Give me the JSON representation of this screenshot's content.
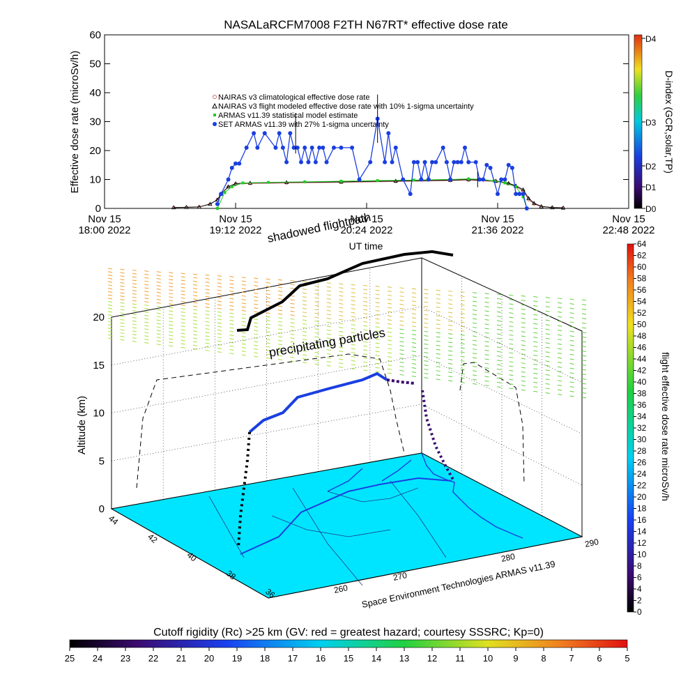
{
  "title": "NASALaRCFM7008  F2TH N67RT* effective dose rate",
  "top_chart": {
    "ylabel": "Effective dose rate (microSv/h)",
    "xlabel": "UT time",
    "yticks": [
      "0",
      "10",
      "20",
      "30",
      "40",
      "50",
      "60"
    ],
    "xticks": [
      {
        "day": "Nov 15",
        "time": "18:00 2022"
      },
      {
        "day": "Nov 15",
        "time": "19:12 2022"
      },
      {
        "day": "Nov 15",
        "time": "20:24 2022"
      },
      {
        "day": "Nov 15",
        "time": "21:36 2022"
      },
      {
        "day": "Nov 15",
        "time": "22:48 2022"
      }
    ],
    "legend": [
      "NAIRAS v3 climatological effective dose rate",
      "NAIRAS v3 flight modeled effective dose rate with 10% 1-sigma uncertainty",
      "ARMAS v11.39 statistical model estimate",
      "SET ARMAS v11.39 with 27% 1-sigma uncertainty"
    ],
    "dindex": {
      "label": "D-index (GCR,solar,TP)",
      "ticks": [
        "D0",
        "D1",
        "D2",
        "D3",
        "D4"
      ]
    }
  },
  "chart_data": [
    {
      "type": "line",
      "title": "NASALaRCFM7008  F2TH N67RT* effective dose rate",
      "xlabel": "UT time",
      "ylabel": "Effective dose rate (microSv/h)",
      "x_units": "minutes after 18:00 UT, Nov 15 2022",
      "xlim": [
        0,
        288
      ],
      "ylim": [
        0,
        60
      ],
      "grid": false,
      "legend_position": "top-left",
      "series": [
        {
          "name": "NAIRAS v3 climatological effective dose rate",
          "color": "#c87070",
          "x": [
            38,
            45,
            52,
            58,
            62,
            64,
            68,
            72,
            80,
            100,
            130,
            160,
            190,
            200,
            215,
            222,
            226,
            230,
            233,
            236,
            240,
            246,
            252
          ],
          "y": [
            0.3,
            0.4,
            0.5,
            1.5,
            3,
            5,
            7.5,
            8.5,
            8.6,
            8.8,
            9,
            9.3,
            9.6,
            9.8,
            9.3,
            8.5,
            7.5,
            6,
            3,
            1.5,
            0.6,
            0.3,
            0.2
          ]
        },
        {
          "name": "NAIRAS v3 flight modeled effective dose rate with 10% 1-sigma uncertainty",
          "color": "#000000",
          "x": [
            38,
            45,
            52,
            58,
            62,
            64,
            68,
            72,
            80,
            100,
            130,
            160,
            190,
            200,
            215,
            222,
            226,
            230,
            233,
            236,
            240,
            246,
            252
          ],
          "y": [
            0.3,
            0.4,
            0.5,
            1.5,
            3,
            5,
            7.5,
            8.6,
            8.8,
            9,
            9.2,
            9.5,
            9.8,
            10,
            9.5,
            8.7,
            7.8,
            6.5,
            3.5,
            1.8,
            0.7,
            0.3,
            0.2
          ]
        },
        {
          "name": "ARMAS v11.39 statistical model estimate",
          "color": "#22cc22",
          "x": [
            62,
            66,
            70,
            76,
            90,
            110,
            130,
            150,
            170,
            190,
            200,
            208,
            214,
            220,
            226,
            230,
            232
          ],
          "y": [
            0,
            5.5,
            7.5,
            8.8,
            9,
            9.2,
            9.4,
            9.6,
            9.8,
            10,
            10.2,
            10,
            9.5,
            8.8,
            7.5,
            4,
            0
          ]
        },
        {
          "name": "SET ARMAS v11.39 with 27% 1-sigma uncertainty",
          "color": "#1a3fe0",
          "x": [
            62,
            64,
            68,
            70,
            72,
            74,
            78,
            82,
            84,
            88,
            94,
            96,
            98,
            100,
            102,
            104,
            106,
            108,
            110,
            112,
            114,
            116,
            118,
            120,
            122,
            126,
            130,
            136,
            140,
            146,
            150,
            154,
            156,
            158,
            160,
            164,
            168,
            170,
            172,
            174,
            176,
            178,
            180,
            182,
            186,
            188,
            190,
            192,
            194,
            196,
            198,
            200,
            204,
            206,
            208,
            210,
            212,
            216,
            218,
            220,
            222,
            224,
            226,
            228,
            230,
            232
          ],
          "y": [
            1.5,
            5,
            10,
            14,
            15.5,
            15.5,
            21,
            26,
            21,
            26,
            21,
            26,
            21,
            16,
            26,
            21,
            21,
            16,
            21,
            16,
            21,
            16,
            21,
            21,
            16,
            21,
            21,
            21,
            10,
            16,
            31,
            16,
            26,
            16,
            21,
            10,
            5,
            16,
            16,
            10,
            16,
            10,
            16,
            16,
            21,
            16,
            10,
            16,
            16,
            16,
            21,
            16,
            16,
            10,
            10,
            15,
            14,
            5,
            10,
            10,
            15,
            14,
            5,
            5,
            5,
            0
          ]
        }
      ]
    },
    {
      "type": "scatter",
      "title": "",
      "xlabel": "",
      "ylabel": "Altitude (km)",
      "zticks": [
        "0",
        "5",
        "10",
        "15",
        "20"
      ],
      "lon_ticks": [
        "280",
        "270",
        "260"
      ],
      "lat_ticks": [
        "44",
        "42",
        "40",
        "38",
        "36"
      ],
      "right_tick": "290",
      "series": [
        {
          "name": "flight effective dose rate microSv/h",
          "description": "3D flight path colored by dose rate"
        },
        {
          "name": "shadowed flightpath"
        }
      ]
    }
  ],
  "annotations": {
    "shadowed": "shadowed flightpath",
    "precip": "precipitating particles",
    "credit": "Space Environment Technologies ARMAS v11.39"
  },
  "right_colorbar": {
    "label": "flight effective dose rate microSv/h",
    "ticks": [
      "0",
      "2",
      "4",
      "6",
      "8",
      "10",
      "12",
      "14",
      "16",
      "18",
      "20",
      "22",
      "24",
      "26",
      "28",
      "30",
      "32",
      "34",
      "36",
      "38",
      "40",
      "42",
      "44",
      "46",
      "48",
      "50",
      "52",
      "54",
      "56",
      "58",
      "60",
      "62",
      "64"
    ]
  },
  "bottom_colorbar": {
    "label": "Cutoff rigidity (Rc) >25 km (GV: red = greatest hazard; courtesy SSSRC; Kp=0)",
    "ticks": [
      "25",
      "24",
      "23",
      "22",
      "21",
      "20",
      "19",
      "18",
      "17",
      "16",
      "15",
      "14",
      "13",
      "12",
      "11",
      "10",
      "9",
      "8",
      "7",
      "6",
      "5"
    ]
  },
  "colors": {
    "ground": "#00e5ff",
    "flight_top": "#000000",
    "precip_orange": "#f0a030",
    "precip_green": "#a0e040"
  }
}
